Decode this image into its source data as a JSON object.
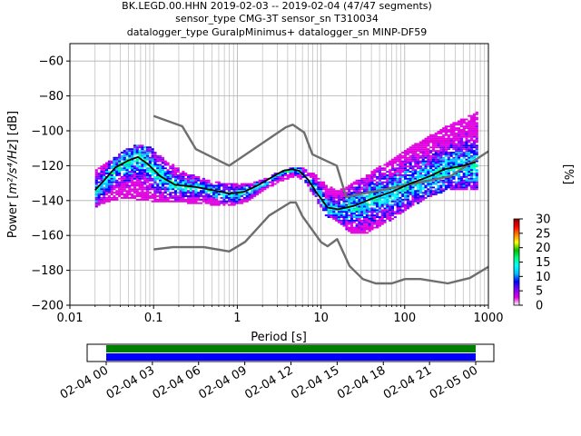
{
  "chart_data": [
    {
      "type": "heatmap",
      "title_lines": [
        "BK.LEGD.00.HHN   2019-02-03 -- 2019-02-04  (47/47 segments)",
        "sensor_type CMG-3T sensor_sn T310034",
        "datalogger_type GuralpMinimus+ datalogger_sn MINP-DF59"
      ],
      "xlabel": "Period [s]",
      "ylabel_main": "Power [",
      "ylabel_unit": "m²/s⁴/Hz",
      "ylabel_tail": "] [dB]",
      "xscale": "log",
      "xlim": [
        0.01,
        1000
      ],
      "ylim": [
        -200,
        -50
      ],
      "xticks": [
        {
          "v": 0.01,
          "label": "0.01"
        },
        {
          "v": 0.1,
          "label": "0.1"
        },
        {
          "v": 1,
          "label": "1"
        },
        {
          "v": 10,
          "label": "10"
        },
        {
          "v": 100,
          "label": "100"
        },
        {
          "v": 1000,
          "label": "1000"
        }
      ],
      "yticks": [
        {
          "v": -60,
          "label": "−60"
        },
        {
          "v": -80,
          "label": "−80"
        },
        {
          "v": -100,
          "label": "−100"
        },
        {
          "v": -120,
          "label": "−120"
        },
        {
          "v": -140,
          "label": "−140"
        },
        {
          "v": -160,
          "label": "−160"
        },
        {
          "v": -180,
          "label": "−180"
        },
        {
          "v": -200,
          "label": "−200"
        }
      ],
      "grid": true,
      "colorbar": {
        "label": "[%]",
        "range": [
          0,
          30
        ],
        "ticks": [
          {
            "v": 0,
            "label": "0"
          },
          {
            "v": 5,
            "label": "5"
          },
          {
            "v": 10,
            "label": "10"
          },
          {
            "v": 15,
            "label": "15"
          },
          {
            "v": 20,
            "label": "20"
          },
          {
            "v": 25,
            "label": "25"
          },
          {
            "v": 30,
            "label": "30"
          }
        ]
      },
      "colormap": [
        "#ffffff",
        "#e000e0",
        "#7f00ff",
        "#0000ff",
        "#00bfff",
        "#00ffff",
        "#00ff80",
        "#00c000",
        "#ffff00",
        "#ff8000",
        "#ff0000",
        "#8b0000"
      ],
      "series": [
        {
          "role": "NHNM",
          "color": "#6e6e6e",
          "points": [
            [
              0.1,
              -91.5
            ],
            [
              0.22,
              -97.4
            ],
            [
              0.32,
              -110.5
            ],
            [
              0.8,
              -120
            ],
            [
              3.8,
              -98
            ],
            [
              4.6,
              -96.5
            ],
            [
              6.3,
              -101
            ],
            [
              7.9,
              -113.5
            ],
            [
              15.4,
              -120
            ],
            [
              20,
              -138
            ],
            [
              354.8,
              -126
            ],
            [
              10000,
              -80
            ]
          ]
        },
        {
          "role": "NLNM",
          "color": "#6e6e6e",
          "points": [
            [
              0.1,
              -168
            ],
            [
              0.17,
              -166.7
            ],
            [
              0.4,
              -166.7
            ],
            [
              0.8,
              -169.2
            ],
            [
              1.24,
              -163.7
            ],
            [
              2.4,
              -148.6
            ],
            [
              4.3,
              -141.1
            ],
            [
              5,
              -141.1
            ],
            [
              6,
              -149
            ],
            [
              10,
              -163.8
            ],
            [
              12,
              -166.2
            ],
            [
              15.6,
              -162.1
            ],
            [
              21.9,
              -177.5
            ],
            [
              31.6,
              -185
            ],
            [
              45,
              -187.5
            ],
            [
              70,
              -187.5
            ],
            [
              101,
              -185
            ],
            [
              154,
              -185
            ],
            [
              328,
              -187.5
            ],
            [
              600,
              -184.4
            ],
            [
              1000,
              -178
            ]
          ]
        },
        {
          "role": "mode",
          "color": "#000000",
          "points": [
            [
              0.02,
              -134
            ],
            [
              0.025,
              -129
            ],
            [
              0.035,
              -121
            ],
            [
              0.05,
              -117
            ],
            [
              0.065,
              -115
            ],
            [
              0.085,
              -119
            ],
            [
              0.12,
              -126
            ],
            [
              0.18,
              -131
            ],
            [
              0.3,
              -132
            ],
            [
              0.5,
              -134
            ],
            [
              0.8,
              -136
            ],
            [
              1.2,
              -135
            ],
            [
              1.8,
              -131
            ],
            [
              2.5,
              -127
            ],
            [
              3.5,
              -123
            ],
            [
              4.5,
              -122
            ],
            [
              5.5,
              -123
            ],
            [
              7,
              -128
            ],
            [
              9,
              -136
            ],
            [
              12,
              -144
            ],
            [
              16,
              -145
            ],
            [
              25,
              -143
            ],
            [
              40,
              -139
            ],
            [
              70,
              -135
            ],
            [
              120,
              -130
            ],
            [
              200,
              -126
            ],
            [
              300,
              -122
            ],
            [
              500,
              -120
            ],
            [
              700,
              -118
            ]
          ]
        }
      ],
      "psd_band": [
        {
          "p": 0.02,
          "lo": -143,
          "hi": -122
        },
        {
          "p": 0.03,
          "lo": -140,
          "hi": -116
        },
        {
          "p": 0.045,
          "lo": -138,
          "hi": -110
        },
        {
          "p": 0.06,
          "lo": -139,
          "hi": -107
        },
        {
          "p": 0.09,
          "lo": -140,
          "hi": -109
        },
        {
          "p": 0.14,
          "lo": -140,
          "hi": -117
        },
        {
          "p": 0.25,
          "lo": -141,
          "hi": -124
        },
        {
          "p": 0.45,
          "lo": -142,
          "hi": -128
        },
        {
          "p": 0.8,
          "lo": -143,
          "hi": -130
        },
        {
          "p": 1.3,
          "lo": -140,
          "hi": -130
        },
        {
          "p": 2,
          "lo": -134,
          "hi": -127
        },
        {
          "p": 3,
          "lo": -129,
          "hi": -123
        },
        {
          "p": 4.5,
          "lo": -126,
          "hi": -120
        },
        {
          "p": 6,
          "lo": -128,
          "hi": -121
        },
        {
          "p": 8,
          "lo": -137,
          "hi": -124
        },
        {
          "p": 11,
          "lo": -148,
          "hi": -130
        },
        {
          "p": 15,
          "lo": -152,
          "hi": -134
        },
        {
          "p": 22,
          "lo": -158,
          "hi": -130
        },
        {
          "p": 35,
          "lo": -158,
          "hi": -124
        },
        {
          "p": 60,
          "lo": -152,
          "hi": -117
        },
        {
          "p": 100,
          "lo": -145,
          "hi": -110
        },
        {
          "p": 180,
          "lo": -138,
          "hi": -103
        },
        {
          "p": 300,
          "lo": -134,
          "hi": -97
        },
        {
          "p": 500,
          "lo": -133,
          "hi": -92
        },
        {
          "p": 700,
          "lo": -133,
          "hi": -89
        }
      ]
    },
    {
      "type": "timeline",
      "xticks": [
        "02-04 00",
        "02-04 03",
        "02-04 06",
        "02-04 09",
        "02-04 12",
        "02-04 15",
        "02-04 18",
        "02-04 21",
        "02-05 00"
      ],
      "bars": [
        {
          "role": "data coverage",
          "color": "#0000ff"
        },
        {
          "role": "psd coverage",
          "color": "#008000"
        }
      ]
    }
  ]
}
